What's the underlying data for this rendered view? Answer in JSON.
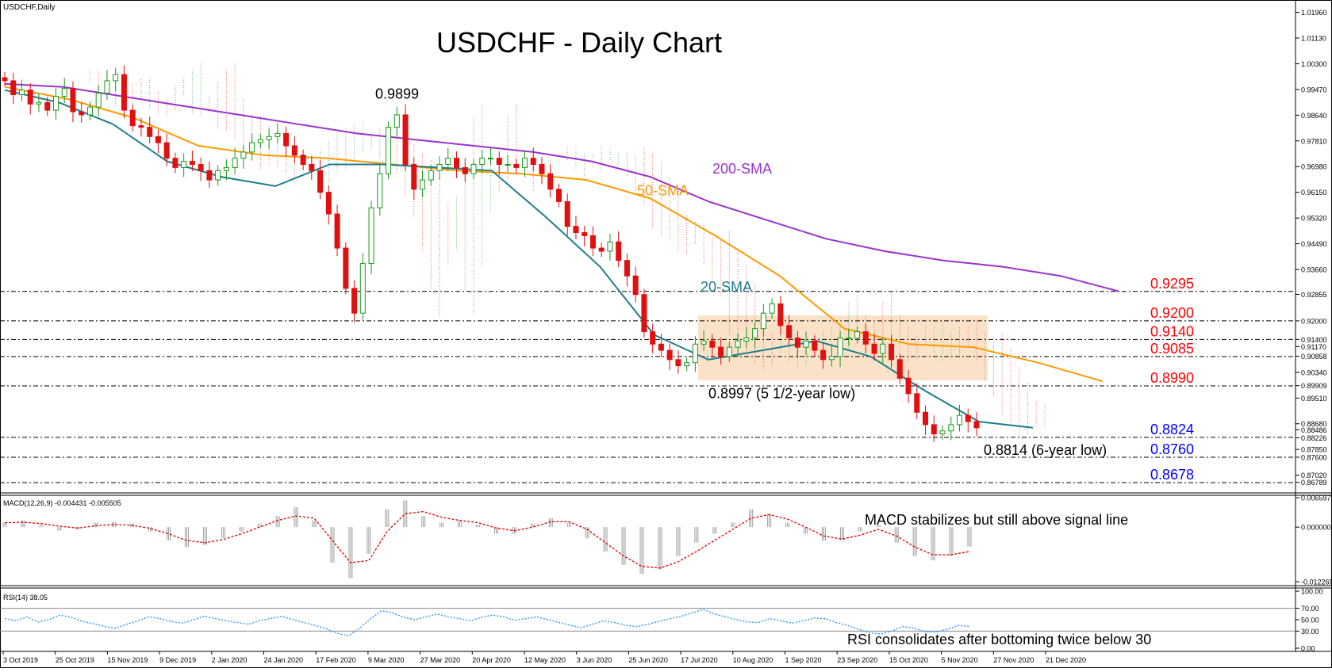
{
  "window": {
    "title": "USDCHF,Daily"
  },
  "chart_title": "USDCHF - Daily Chart",
  "colors": {
    "candle_up": "#1a9a1a",
    "candle_down": "#e01010",
    "sma20": "#1e7d8c",
    "sma50": "#ff9900",
    "sma200": "#9933cc",
    "tenkan": "#ff0000",
    "kijun": "#0000ff",
    "chikou": "#33cc33",
    "cloud_bull": "#66bb66",
    "cloud_bear": "#ee6655",
    "resistance_label": "#ff0000",
    "support_label": "#0000ff",
    "macd_hist": "#a0a0a0",
    "macd_signal": "#dd0000",
    "rsi_line": "#1e90ff",
    "consolidation_box": "#fae2c8"
  },
  "chart_data": [
    {
      "type": "line",
      "panel": "price",
      "title": "USDCHF - Daily Chart",
      "x_tick_labels": [
        "3 Oct 2019",
        "25 Oct 2019",
        "15 Nov 2019",
        "9 Dec 2019",
        "2 Jan 2020",
        "24 Jan 2020",
        "17 Feb 2020",
        "9 Mar 2020",
        "27 Mar 2020",
        "20 Apr 2020",
        "12 May 2020",
        "3 Jun 2020",
        "25 Jun 2020",
        "17 Jul 2020",
        "10 Aug 2020",
        "1 Sep 2020",
        "23 Sep 2020",
        "15 Oct 2020",
        "5 Nov 2020",
        "27 Nov 2020",
        "21 Dec 2020"
      ],
      "y_tick_labels": [
        "1.01960",
        "1.01130",
        "1.00300",
        "0.99470",
        "0.98640",
        "0.97810",
        "0.96980",
        "0.96150",
        "0.95320",
        "0.94490",
        "0.93660",
        "0.92855",
        "0.92000",
        "0.91400",
        "0.91170",
        "0.90858",
        "0.90340",
        "0.89909",
        "0.89510",
        "0.88680",
        "0.88486",
        "0.88226",
        "0.87850",
        "0.87600",
        "0.87020",
        "0.86789"
      ],
      "ylim": [
        0.8655,
        1.0205
      ],
      "price_series": [
        0.9975,
        0.993,
        0.9945,
        0.99,
        0.9905,
        0.988,
        0.9925,
        0.995,
        0.9875,
        0.9865,
        0.989,
        0.9935,
        0.9975,
        0.9995,
        0.988,
        0.983,
        0.9825,
        0.9795,
        0.9775,
        0.9725,
        0.9695,
        0.9715,
        0.9705,
        0.9685,
        0.9655,
        0.9685,
        0.9695,
        0.9725,
        0.9745,
        0.9775,
        0.9785,
        0.9795,
        0.9805,
        0.9765,
        0.9735,
        0.9705,
        0.9685,
        0.9615,
        0.9545,
        0.9435,
        0.9305,
        0.9225,
        0.9385,
        0.9565,
        0.9675,
        0.9825,
        0.9865,
        0.9705,
        0.9625,
        0.9655,
        0.9685,
        0.9705,
        0.9725,
        0.9695,
        0.9675,
        0.9705,
        0.9725,
        0.9725,
        0.9705,
        0.9705,
        0.9695,
        0.9725,
        0.9705,
        0.9675,
        0.9625,
        0.9585,
        0.9505,
        0.9485,
        0.9475,
        0.9435,
        0.9425,
        0.9455,
        0.9395,
        0.9345,
        0.9285,
        0.9165,
        0.9125,
        0.9105,
        0.9075,
        0.9055,
        0.9065,
        0.9125,
        0.9135,
        0.9115,
        0.9085,
        0.9115,
        0.9135,
        0.9145,
        0.9175,
        0.9225,
        0.9255,
        0.9185,
        0.9145,
        0.9115,
        0.9135,
        0.9105,
        0.9075,
        0.9085,
        0.9145,
        0.9145,
        0.9165,
        0.9125,
        0.9095,
        0.9125,
        0.9075,
        0.9015,
        0.8965,
        0.8905,
        0.8865,
        0.8835,
        0.8845,
        0.8865,
        0.8895,
        0.8875,
        0.8855
      ],
      "indicators": [
        {
          "name": "200-SMA",
          "values": [
            0.9965,
            0.9955,
            0.9925,
            0.9895,
            0.9865,
            0.9835,
            0.9805,
            0.9785,
            0.9765,
            0.9745,
            0.9715,
            0.9665,
            0.9585,
            0.9525,
            0.9465,
            0.9425,
            0.9395,
            0.9375,
            0.9345,
            0.9295
          ]
        },
        {
          "name": "50-SMA",
          "values": [
            0.9955,
            0.9915,
            0.9855,
            0.9765,
            0.9735,
            0.9725,
            0.9705,
            0.9685,
            0.9675,
            0.9655,
            0.9595,
            0.9475,
            0.9345,
            0.9175,
            0.9125,
            0.9115,
            0.9065,
            0.9005
          ]
        },
        {
          "name": "20-SMA",
          "values": [
            0.9945,
            0.9905,
            0.9835,
            0.9715,
            0.9665,
            0.9635,
            0.9705,
            0.9705,
            0.9695,
            0.9685,
            0.9535,
            0.9375,
            0.9155,
            0.9075,
            0.9105,
            0.9135,
            0.9085,
            0.8975,
            0.8875,
            0.8855
          ]
        }
      ],
      "annotations": [
        {
          "text": "200-SMA",
          "at": [
            "Sep 2020",
            0.9675
          ]
        },
        {
          "text": "50-SMA",
          "at": [
            "Aug 2020",
            0.9605
          ]
        },
        {
          "text": "20-SMA",
          "at": [
            "Aug 2020",
            0.9295
          ]
        },
        {
          "text": "0.9899",
          "at": [
            "Mar 2020",
            0.9899
          ]
        },
        {
          "text": "0.8997 (5 1/2-year low)",
          "at": [
            "Aug 2020",
            0.8997
          ]
        },
        {
          "text": "0.8814 (6-year low)",
          "at": [
            "Dec 2020",
            0.8814
          ]
        }
      ],
      "horizontal_levels": [
        {
          "label": "0.9295",
          "value": 0.9295,
          "kind": "resistance"
        },
        {
          "label": "0.9200",
          "value": 0.92,
          "kind": "resistance"
        },
        {
          "label": "0.9140",
          "value": 0.914,
          "kind": "resistance"
        },
        {
          "label": "0.9085",
          "value": 0.9085,
          "kind": "resistance"
        },
        {
          "label": "0.8990",
          "value": 0.899,
          "kind": "resistance"
        },
        {
          "label": "0.8824",
          "value": 0.8824,
          "kind": "support"
        },
        {
          "label": "0.8760",
          "value": 0.876,
          "kind": "support"
        },
        {
          "label": "0.8678",
          "value": 0.8678,
          "kind": "support"
        }
      ],
      "grid": false
    },
    {
      "type": "bar",
      "panel": "macd",
      "title": "MACD(12,26,9) -0.004431 -0.005505",
      "y_tick_labels": [
        "0.006597",
        "0.000000",
        "-0.012269"
      ],
      "ylim": [
        -0.0128,
        0.0068
      ],
      "annotation": "MACD stabilizes but still above signal line",
      "histogram": [
        0.001,
        0.0015,
        0.0005,
        -0.0008,
        -0.0005,
        0.001,
        0.0012,
        0.0008,
        -0.001,
        -0.003,
        -0.0045,
        -0.004,
        -0.0025,
        -0.001,
        0.0008,
        0.0025,
        0.0045,
        0.0015,
        -0.008,
        -0.0115,
        -0.006,
        0.004,
        0.006,
        0.0025,
        0.001,
        0.0015,
        0.0005,
        -0.0015,
        -0.0015,
        0.0008,
        0.002,
        0.001,
        -0.0025,
        -0.0055,
        -0.0085,
        -0.0105,
        -0.0095,
        -0.0065,
        -0.0035,
        -0.0015,
        0.001,
        0.004,
        0.003,
        0.001,
        -0.0015,
        -0.003,
        -0.003,
        -0.001,
        0.0005,
        -0.0035,
        -0.0065,
        -0.0075,
        -0.0065,
        -0.0044
      ],
      "signal": [
        0.001,
        0.0011,
        0.0008,
        0.0002,
        -0.0002,
        0.0003,
        0.0006,
        0.0004,
        -0.0003,
        -0.0015,
        -0.003,
        -0.0035,
        -0.0028,
        -0.0015,
        0.0,
        0.0015,
        0.0025,
        0.002,
        -0.003,
        -0.008,
        -0.0075,
        -0.001,
        0.003,
        0.0035,
        0.0022,
        0.0015,
        0.001,
        -0.0002,
        -0.0008,
        0.0,
        0.0012,
        0.0012,
        -0.0005,
        -0.0035,
        -0.0065,
        -0.0088,
        -0.0092,
        -0.0078,
        -0.0055,
        -0.003,
        -0.0005,
        0.002,
        0.0028,
        0.0018,
        0.0,
        -0.002,
        -0.0027,
        -0.0018,
        -0.0005,
        -0.002,
        -0.0045,
        -0.0062,
        -0.0062,
        -0.0055
      ]
    },
    {
      "type": "line",
      "panel": "rsi",
      "title": "RSI(14) 38.05",
      "y_tick_labels": [
        "100.00",
        "70.00",
        "50.00",
        "30.00",
        "0.00"
      ],
      "ylim": [
        0,
        100
      ],
      "levels": [
        70,
        30
      ],
      "annotation": "RSI consolidates after bottoming twice below 30",
      "values": [
        52,
        48,
        55,
        46,
        50,
        58,
        54,
        47,
        43,
        38,
        35,
        42,
        48,
        55,
        52,
        47,
        44,
        50,
        56,
        52,
        48,
        45,
        42,
        49,
        52,
        56,
        50,
        45,
        40,
        34,
        26,
        22,
        35,
        52,
        66,
        62,
        54,
        50,
        55,
        60,
        55,
        52,
        48,
        54,
        58,
        55,
        49,
        52,
        55,
        50,
        45,
        40,
        36,
        42,
        48,
        45,
        40,
        38,
        42,
        47,
        52,
        56,
        62,
        68,
        60,
        55,
        50,
        46,
        45,
        52,
        48,
        44,
        48,
        53,
        52,
        45,
        40,
        33,
        27,
        25,
        30,
        38,
        35,
        29,
        28,
        33,
        40,
        38
      ]
    }
  ]
}
